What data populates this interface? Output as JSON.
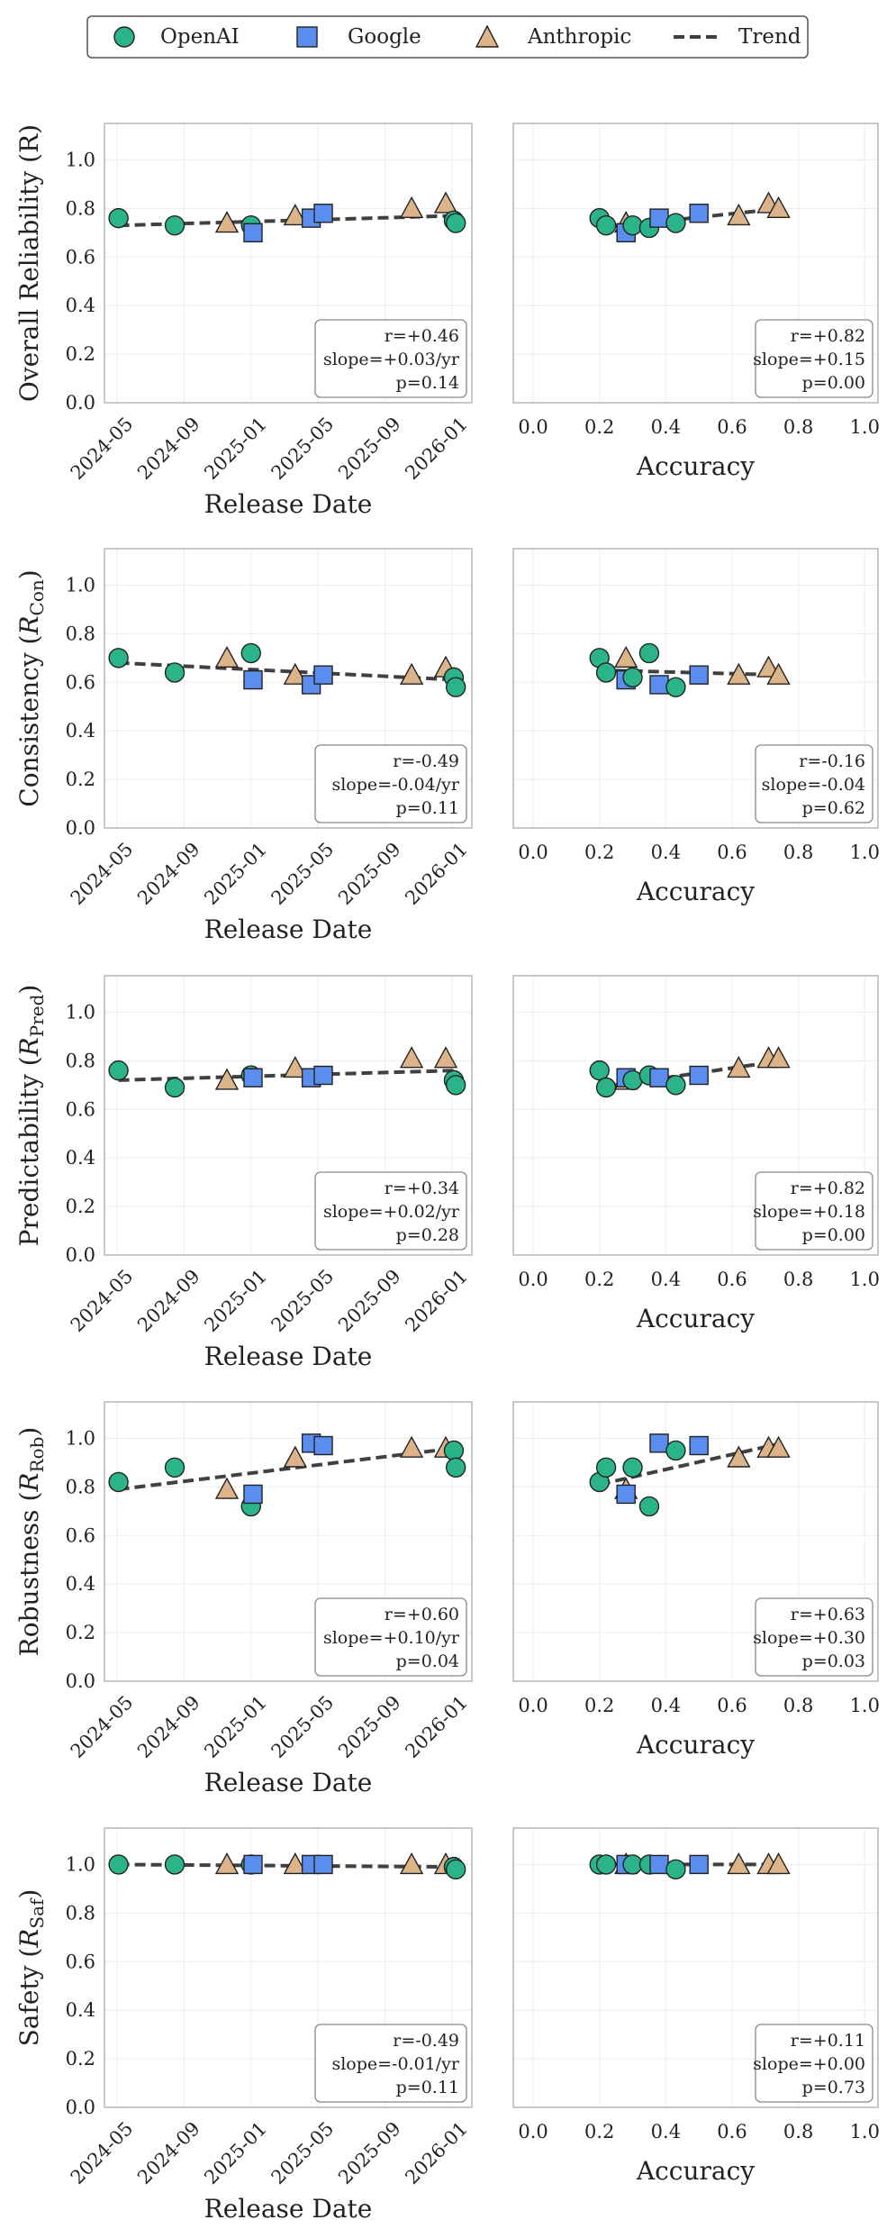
{
  "legend": {
    "openai": "OpenAI",
    "google": "Google",
    "anthropic": "Anthropic",
    "trend": "Trend"
  },
  "colors": {
    "OpenAI": "#2bb38a",
    "Google": "#5b8def",
    "Anthropic": "#ddb48a",
    "trend": "#404040"
  },
  "chart_data": [
    {
      "type": "scatter",
      "panel": "reliability-date",
      "ylabel": "Overall Reliability (R)",
      "xlabel": "Release Date",
      "x_ticks": [
        "2024-05",
        "2024-09",
        "2025-01",
        "2025-05",
        "2025-09",
        "2026-01"
      ],
      "ylim": [
        0,
        1.15
      ],
      "y_ticks": [
        "0.0",
        "0.2",
        "0.4",
        "0.6",
        "0.8",
        "1.0"
      ],
      "points": [
        {
          "x": 2024.34,
          "y": 0.76,
          "org": "OpenAI"
        },
        {
          "x": 2024.62,
          "y": 0.73,
          "org": "OpenAI"
        },
        {
          "x": 2024.88,
          "y": 0.74,
          "org": "Anthropic"
        },
        {
          "x": 2025.0,
          "y": 0.73,
          "org": "OpenAI"
        },
        {
          "x": 2025.01,
          "y": 0.7,
          "org": "Google"
        },
        {
          "x": 2025.22,
          "y": 0.77,
          "org": "Anthropic"
        },
        {
          "x": 2025.3,
          "y": 0.76,
          "org": "Google"
        },
        {
          "x": 2025.36,
          "y": 0.78,
          "org": "Google"
        },
        {
          "x": 2025.8,
          "y": 0.8,
          "org": "Anthropic"
        },
        {
          "x": 2025.97,
          "y": 0.82,
          "org": "Anthropic"
        },
        {
          "x": 2026.01,
          "y": 0.75,
          "org": "OpenAI"
        },
        {
          "x": 2026.02,
          "y": 0.74,
          "org": "OpenAI"
        }
      ],
      "trend": {
        "x": [
          2024.34,
          2026.02
        ],
        "y": [
          0.73,
          0.77
        ]
      },
      "stats": {
        "r": "r=+0.46",
        "slope": "slope=+0.03/yr",
        "p": "p=0.14"
      }
    },
    {
      "type": "scatter",
      "panel": "reliability-accuracy",
      "ylabel": "",
      "xlabel": "Accuracy",
      "xlim": [
        0,
        1.0
      ],
      "x_ticks": [
        "0.0",
        "0.2",
        "0.4",
        "0.6",
        "0.8",
        "1.0"
      ],
      "ylim": [
        0,
        1.15
      ],
      "points": [
        {
          "x": 0.2,
          "y": 0.76,
          "org": "OpenAI"
        },
        {
          "x": 0.22,
          "y": 0.73,
          "org": "OpenAI"
        },
        {
          "x": 0.28,
          "y": 0.74,
          "org": "Anthropic"
        },
        {
          "x": 0.28,
          "y": 0.7,
          "org": "Google"
        },
        {
          "x": 0.3,
          "y": 0.73,
          "org": "OpenAI"
        },
        {
          "x": 0.35,
          "y": 0.72,
          "org": "OpenAI"
        },
        {
          "x": 0.38,
          "y": 0.76,
          "org": "Google"
        },
        {
          "x": 0.43,
          "y": 0.74,
          "org": "OpenAI"
        },
        {
          "x": 0.5,
          "y": 0.78,
          "org": "Google"
        },
        {
          "x": 0.62,
          "y": 0.77,
          "org": "Anthropic"
        },
        {
          "x": 0.71,
          "y": 0.82,
          "org": "Anthropic"
        },
        {
          "x": 0.74,
          "y": 0.8,
          "org": "Anthropic"
        }
      ],
      "trend": {
        "x": [
          0.2,
          0.75
        ],
        "y": [
          0.72,
          0.8
        ]
      },
      "stats": {
        "r": "r=+0.82",
        "slope": "slope=+0.15",
        "p": "p=0.00"
      }
    },
    {
      "type": "scatter",
      "panel": "consistency-date",
      "ylabel": "Consistency (R_Con)",
      "xlabel": "Release Date",
      "x_ticks": [
        "2024-05",
        "2024-09",
        "2025-01",
        "2025-05",
        "2025-09",
        "2026-01"
      ],
      "ylim": [
        0,
        1.15
      ],
      "y_ticks": [
        "0.0",
        "0.2",
        "0.4",
        "0.6",
        "0.8",
        "1.0"
      ],
      "points": [
        {
          "x": 2024.34,
          "y": 0.7,
          "org": "OpenAI"
        },
        {
          "x": 2024.62,
          "y": 0.64,
          "org": "OpenAI"
        },
        {
          "x": 2024.88,
          "y": 0.7,
          "org": "Anthropic"
        },
        {
          "x": 2025.0,
          "y": 0.72,
          "org": "OpenAI"
        },
        {
          "x": 2025.01,
          "y": 0.61,
          "org": "Google"
        },
        {
          "x": 2025.22,
          "y": 0.63,
          "org": "Anthropic"
        },
        {
          "x": 2025.3,
          "y": 0.59,
          "org": "Google"
        },
        {
          "x": 2025.36,
          "y": 0.63,
          "org": "Google"
        },
        {
          "x": 2025.8,
          "y": 0.63,
          "org": "Anthropic"
        },
        {
          "x": 2025.97,
          "y": 0.66,
          "org": "Anthropic"
        },
        {
          "x": 2026.01,
          "y": 0.62,
          "org": "OpenAI"
        },
        {
          "x": 2026.02,
          "y": 0.58,
          "org": "OpenAI"
        }
      ],
      "trend": {
        "x": [
          2024.34,
          2026.02
        ],
        "y": [
          0.68,
          0.61
        ]
      },
      "stats": {
        "r": "r=-0.49",
        "slope": "slope=-0.04/yr",
        "p": "p=0.11"
      }
    },
    {
      "type": "scatter",
      "panel": "consistency-accuracy",
      "ylabel": "",
      "xlabel": "Accuracy",
      "xlim": [
        0,
        1.0
      ],
      "x_ticks": [
        "0.0",
        "0.2",
        "0.4",
        "0.6",
        "0.8",
        "1.0"
      ],
      "ylim": [
        0,
        1.15
      ],
      "points": [
        {
          "x": 0.2,
          "y": 0.7,
          "org": "OpenAI"
        },
        {
          "x": 0.22,
          "y": 0.64,
          "org": "OpenAI"
        },
        {
          "x": 0.28,
          "y": 0.7,
          "org": "Anthropic"
        },
        {
          "x": 0.28,
          "y": 0.61,
          "org": "Google"
        },
        {
          "x": 0.3,
          "y": 0.62,
          "org": "OpenAI"
        },
        {
          "x": 0.35,
          "y": 0.72,
          "org": "OpenAI"
        },
        {
          "x": 0.38,
          "y": 0.59,
          "org": "Google"
        },
        {
          "x": 0.43,
          "y": 0.58,
          "org": "OpenAI"
        },
        {
          "x": 0.5,
          "y": 0.63,
          "org": "Google"
        },
        {
          "x": 0.62,
          "y": 0.63,
          "org": "Anthropic"
        },
        {
          "x": 0.71,
          "y": 0.66,
          "org": "Anthropic"
        },
        {
          "x": 0.74,
          "y": 0.63,
          "org": "Anthropic"
        }
      ],
      "trend": {
        "x": [
          0.2,
          0.75
        ],
        "y": [
          0.65,
          0.63
        ]
      },
      "stats": {
        "r": "r=-0.16",
        "slope": "slope=-0.04",
        "p": "p=0.62"
      }
    },
    {
      "type": "scatter",
      "panel": "predictability-date",
      "ylabel": "Predictability (R_Pred)",
      "xlabel": "Release Date",
      "x_ticks": [
        "2024-05",
        "2024-09",
        "2025-01",
        "2025-05",
        "2025-09",
        "2026-01"
      ],
      "ylim": [
        0,
        1.15
      ],
      "y_ticks": [
        "0.0",
        "0.2",
        "0.4",
        "0.6",
        "0.8",
        "1.0"
      ],
      "points": [
        {
          "x": 2024.34,
          "y": 0.76,
          "org": "OpenAI"
        },
        {
          "x": 2024.62,
          "y": 0.69,
          "org": "OpenAI"
        },
        {
          "x": 2024.88,
          "y": 0.72,
          "org": "Anthropic"
        },
        {
          "x": 2025.0,
          "y": 0.74,
          "org": "OpenAI"
        },
        {
          "x": 2025.01,
          "y": 0.73,
          "org": "Google"
        },
        {
          "x": 2025.22,
          "y": 0.77,
          "org": "Anthropic"
        },
        {
          "x": 2025.3,
          "y": 0.73,
          "org": "Google"
        },
        {
          "x": 2025.36,
          "y": 0.74,
          "org": "Google"
        },
        {
          "x": 2025.8,
          "y": 0.81,
          "org": "Anthropic"
        },
        {
          "x": 2025.97,
          "y": 0.81,
          "org": "Anthropic"
        },
        {
          "x": 2026.01,
          "y": 0.72,
          "org": "OpenAI"
        },
        {
          "x": 2026.02,
          "y": 0.7,
          "org": "OpenAI"
        }
      ],
      "trend": {
        "x": [
          2024.34,
          2026.02
        ],
        "y": [
          0.72,
          0.76
        ]
      },
      "stats": {
        "r": "r=+0.34",
        "slope": "slope=+0.02/yr",
        "p": "p=0.28"
      }
    },
    {
      "type": "scatter",
      "panel": "predictability-accuracy",
      "ylabel": "",
      "xlabel": "Accuracy",
      "xlim": [
        0,
        1.0
      ],
      "x_ticks": [
        "0.0",
        "0.2",
        "0.4",
        "0.6",
        "0.8",
        "1.0"
      ],
      "ylim": [
        0,
        1.15
      ],
      "points": [
        {
          "x": 0.2,
          "y": 0.76,
          "org": "OpenAI"
        },
        {
          "x": 0.22,
          "y": 0.69,
          "org": "OpenAI"
        },
        {
          "x": 0.28,
          "y": 0.72,
          "org": "Anthropic"
        },
        {
          "x": 0.28,
          "y": 0.73,
          "org": "Google"
        },
        {
          "x": 0.3,
          "y": 0.72,
          "org": "OpenAI"
        },
        {
          "x": 0.35,
          "y": 0.74,
          "org": "OpenAI"
        },
        {
          "x": 0.38,
          "y": 0.73,
          "org": "Google"
        },
        {
          "x": 0.43,
          "y": 0.7,
          "org": "OpenAI"
        },
        {
          "x": 0.5,
          "y": 0.74,
          "org": "Google"
        },
        {
          "x": 0.62,
          "y": 0.77,
          "org": "Anthropic"
        },
        {
          "x": 0.71,
          "y": 0.81,
          "org": "Anthropic"
        },
        {
          "x": 0.74,
          "y": 0.81,
          "org": "Anthropic"
        }
      ],
      "trend": {
        "x": [
          0.2,
          0.75
        ],
        "y": [
          0.69,
          0.8
        ]
      },
      "stats": {
        "r": "r=+0.82",
        "slope": "slope=+0.18",
        "p": "p=0.00"
      }
    },
    {
      "type": "scatter",
      "panel": "robustness-date",
      "ylabel": "Robustness (R_Rob)",
      "xlabel": "Release Date",
      "x_ticks": [
        "2024-05",
        "2024-09",
        "2025-01",
        "2025-05",
        "2025-09",
        "2026-01"
      ],
      "ylim": [
        0,
        1.15
      ],
      "y_ticks": [
        "0.0",
        "0.2",
        "0.4",
        "0.6",
        "0.8",
        "1.0"
      ],
      "points": [
        {
          "x": 2024.34,
          "y": 0.82,
          "org": "OpenAI"
        },
        {
          "x": 2024.62,
          "y": 0.88,
          "org": "OpenAI"
        },
        {
          "x": 2024.88,
          "y": 0.79,
          "org": "Anthropic"
        },
        {
          "x": 2025.0,
          "y": 0.72,
          "org": "OpenAI"
        },
        {
          "x": 2025.01,
          "y": 0.77,
          "org": "Google"
        },
        {
          "x": 2025.22,
          "y": 0.92,
          "org": "Anthropic"
        },
        {
          "x": 2025.3,
          "y": 0.98,
          "org": "Google"
        },
        {
          "x": 2025.36,
          "y": 0.97,
          "org": "Google"
        },
        {
          "x": 2025.8,
          "y": 0.96,
          "org": "Anthropic"
        },
        {
          "x": 2025.97,
          "y": 0.96,
          "org": "Anthropic"
        },
        {
          "x": 2026.01,
          "y": 0.95,
          "org": "OpenAI"
        },
        {
          "x": 2026.02,
          "y": 0.88,
          "org": "OpenAI"
        }
      ],
      "trend": {
        "x": [
          2024.34,
          2026.02
        ],
        "y": [
          0.79,
          0.96
        ]
      },
      "stats": {
        "r": "r=+0.60",
        "slope": "slope=+0.10/yr",
        "p": "p=0.04"
      }
    },
    {
      "type": "scatter",
      "panel": "robustness-accuracy",
      "ylabel": "",
      "xlabel": "Accuracy",
      "xlim": [
        0,
        1.0
      ],
      "x_ticks": [
        "0.0",
        "0.2",
        "0.4",
        "0.6",
        "0.8",
        "1.0"
      ],
      "ylim": [
        0,
        1.15
      ],
      "points": [
        {
          "x": 0.2,
          "y": 0.82,
          "org": "OpenAI"
        },
        {
          "x": 0.22,
          "y": 0.88,
          "org": "OpenAI"
        },
        {
          "x": 0.28,
          "y": 0.79,
          "org": "Anthropic"
        },
        {
          "x": 0.28,
          "y": 0.77,
          "org": "Google"
        },
        {
          "x": 0.3,
          "y": 0.88,
          "org": "OpenAI"
        },
        {
          "x": 0.35,
          "y": 0.72,
          "org": "OpenAI"
        },
        {
          "x": 0.38,
          "y": 0.98,
          "org": "Google"
        },
        {
          "x": 0.43,
          "y": 0.95,
          "org": "OpenAI"
        },
        {
          "x": 0.5,
          "y": 0.97,
          "org": "Google"
        },
        {
          "x": 0.62,
          "y": 0.92,
          "org": "Anthropic"
        },
        {
          "x": 0.71,
          "y": 0.96,
          "org": "Anthropic"
        },
        {
          "x": 0.74,
          "y": 0.96,
          "org": "Anthropic"
        }
      ],
      "trend": {
        "x": [
          0.2,
          0.75
        ],
        "y": [
          0.81,
          0.98
        ]
      },
      "stats": {
        "r": "r=+0.63",
        "slope": "slope=+0.30",
        "p": "p=0.03"
      }
    },
    {
      "type": "scatter",
      "panel": "safety-date",
      "ylabel": "Safety (R_Saf)",
      "xlabel": "Release Date",
      "x_ticks": [
        "2024-05",
        "2024-09",
        "2025-01",
        "2025-05",
        "2025-09",
        "2026-01"
      ],
      "ylim": [
        0,
        1.15
      ],
      "y_ticks": [
        "0.0",
        "0.2",
        "0.4",
        "0.6",
        "0.8",
        "1.0"
      ],
      "points": [
        {
          "x": 2024.34,
          "y": 1.0,
          "org": "OpenAI"
        },
        {
          "x": 2024.62,
          "y": 1.0,
          "org": "OpenAI"
        },
        {
          "x": 2024.88,
          "y": 1.0,
          "org": "Anthropic"
        },
        {
          "x": 2025.0,
          "y": 1.0,
          "org": "OpenAI"
        },
        {
          "x": 2025.01,
          "y": 1.0,
          "org": "Google"
        },
        {
          "x": 2025.22,
          "y": 1.0,
          "org": "Anthropic"
        },
        {
          "x": 2025.3,
          "y": 1.0,
          "org": "Google"
        },
        {
          "x": 2025.36,
          "y": 1.0,
          "org": "Google"
        },
        {
          "x": 2025.8,
          "y": 1.0,
          "org": "Anthropic"
        },
        {
          "x": 2025.97,
          "y": 1.0,
          "org": "Anthropic"
        },
        {
          "x": 2026.01,
          "y": 0.99,
          "org": "OpenAI"
        },
        {
          "x": 2026.02,
          "y": 0.98,
          "org": "OpenAI"
        }
      ],
      "trend": {
        "x": [
          2024.34,
          2026.02
        ],
        "y": [
          1.0,
          0.99
        ]
      },
      "stats": {
        "r": "r=-0.49",
        "slope": "slope=-0.01/yr",
        "p": "p=0.11"
      }
    },
    {
      "type": "scatter",
      "panel": "safety-accuracy",
      "ylabel": "",
      "xlabel": "Accuracy",
      "xlim": [
        0,
        1.0
      ],
      "x_ticks": [
        "0.0",
        "0.2",
        "0.4",
        "0.6",
        "0.8",
        "1.0"
      ],
      "ylim": [
        0,
        1.15
      ],
      "points": [
        {
          "x": 0.2,
          "y": 1.0,
          "org": "OpenAI"
        },
        {
          "x": 0.22,
          "y": 1.0,
          "org": "OpenAI"
        },
        {
          "x": 0.28,
          "y": 1.0,
          "org": "Anthropic"
        },
        {
          "x": 0.28,
          "y": 1.0,
          "org": "Google"
        },
        {
          "x": 0.3,
          "y": 1.0,
          "org": "OpenAI"
        },
        {
          "x": 0.35,
          "y": 1.0,
          "org": "OpenAI"
        },
        {
          "x": 0.38,
          "y": 1.0,
          "org": "Google"
        },
        {
          "x": 0.43,
          "y": 0.98,
          "org": "OpenAI"
        },
        {
          "x": 0.5,
          "y": 1.0,
          "org": "Google"
        },
        {
          "x": 0.62,
          "y": 1.0,
          "org": "Anthropic"
        },
        {
          "x": 0.71,
          "y": 1.0,
          "org": "Anthropic"
        },
        {
          "x": 0.74,
          "y": 1.0,
          "org": "Anthropic"
        }
      ],
      "trend": {
        "x": [
          0.2,
          0.75
        ],
        "y": [
          1.0,
          1.0
        ]
      },
      "stats": {
        "r": "r=+0.11",
        "slope": "slope=+0.00",
        "p": "p=0.73"
      }
    }
  ]
}
